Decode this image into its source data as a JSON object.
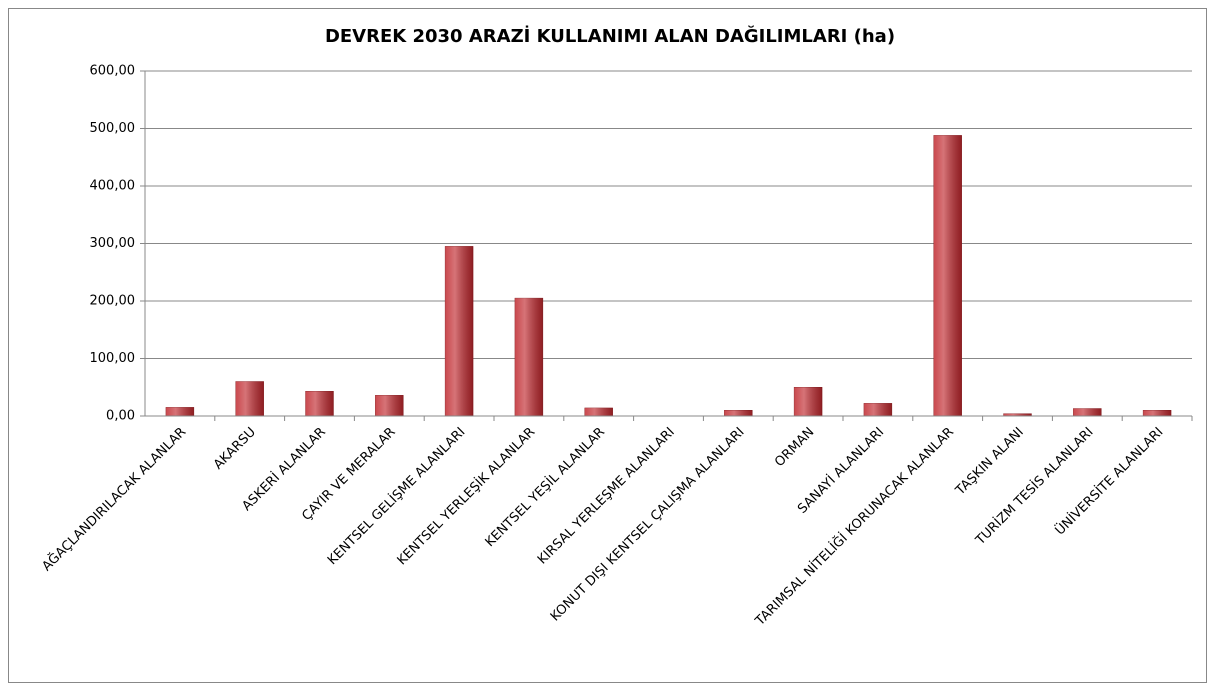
{
  "chart_data": {
    "type": "bar",
    "title": "DEVREK 2030 ARAZİ KULLANIMI ALAN DAĞILIMLARI (ha)",
    "categories": [
      "AĞAÇLANDIRILACAK ALANLAR",
      "AKARSU",
      "ASKERİ ALANLAR",
      "ÇAYIR VE MERALAR",
      "KENTSEL GELİŞME ALANLARI",
      "KENTSEL YERLEŞİK ALANLAR",
      "KENTSEL YEŞİL ALANLAR",
      "KIRSAL YERLEŞME ALANLARI",
      "KONUT DIŞI KENTSEL ÇALIŞMA ALANLARI",
      "ORMAN",
      "SANAYİ ALANLARI",
      "TARIMSAL NİTELİĞİ KORUNACAK ALANLAR",
      "TAŞKIN ALANI",
      "TURİZM TESİS ALANLARI",
      "ÜNİVERSİTE ALANLARI"
    ],
    "values": [
      15,
      60,
      43,
      36,
      295,
      205,
      14,
      0,
      10,
      50,
      22,
      488,
      4,
      13,
      10
    ],
    "color": "#c0282e",
    "ylim": [
      0,
      600
    ],
    "yticks": [
      {
        "value": 0,
        "label": "0,00"
      },
      {
        "value": 100,
        "label": "100,00"
      },
      {
        "value": 200,
        "label": "200,00"
      },
      {
        "value": 300,
        "label": "300,00"
      },
      {
        "value": 400,
        "label": "400,00"
      },
      {
        "value": 500,
        "label": "500,00"
      },
      {
        "value": 600,
        "label": "600,00"
      }
    ],
    "grid": true
  }
}
